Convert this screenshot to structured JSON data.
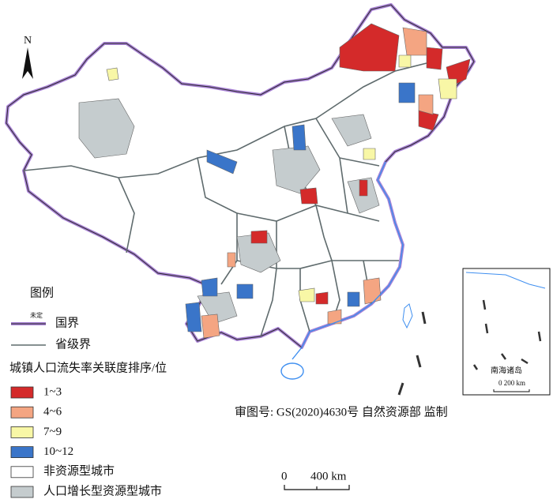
{
  "north_arrow": "N",
  "legend": {
    "title": "图例",
    "boundaries": [
      {
        "label": "国界",
        "note": "未定"
      },
      {
        "label": "省级界"
      }
    ],
    "subtitle": "城镇人口流失率关联度排序/位",
    "classes": [
      {
        "label": "1~3",
        "color": "#d42a2a"
      },
      {
        "label": "4~6",
        "color": "#f4a582"
      },
      {
        "label": "7~9",
        "color": "#f8f7a6"
      },
      {
        "label": "10~12",
        "color": "#3a75c9"
      },
      {
        "label": "非资源型城市",
        "color": "#ffffff"
      },
      {
        "label": "人口增长型资源型城市",
        "color": "#c5ccce"
      }
    ]
  },
  "approval": "审图号: GS(2020)4630号  自然资源部 监制",
  "scale_bar": {
    "start": "0",
    "end": "400 km"
  },
  "inset": {
    "label": "南海诸岛",
    "scale": "0 200 km"
  }
}
